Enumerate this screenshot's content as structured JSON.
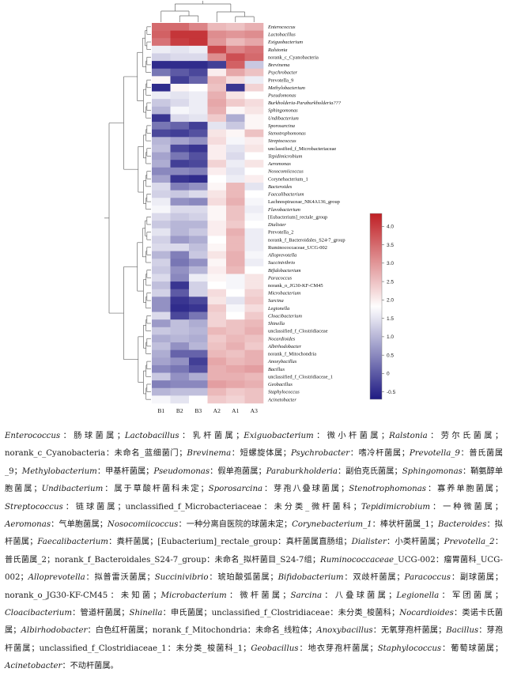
{
  "chart_data": {
    "type": "heatmap",
    "title": "",
    "columns": [
      "B1",
      "B2",
      "B3",
      "A2",
      "A1",
      "A3"
    ],
    "rows": [
      {
        "name": "Enterococcus",
        "italic": true,
        "values": [
          3.5,
          3.5,
          3.2,
          2.6,
          2.5,
          2.7
        ]
      },
      {
        "name": "Lactobacillus",
        "italic": true,
        "values": [
          3.6,
          4.1,
          4.1,
          3.1,
          3.0,
          3.1
        ]
      },
      {
        "name": "Exiguobacterium",
        "italic": true,
        "values": [
          3.4,
          4.0,
          4.1,
          3.0,
          2.6,
          2.8
        ]
      },
      {
        "name": "Ralstonia",
        "italic": true,
        "values": [
          1.6,
          1.5,
          1.6,
          3.9,
          3.2,
          3.4
        ]
      },
      {
        "name": "norank_c_Cyanobacteria",
        "italic": false,
        "values": [
          1.3,
          1.4,
          1.4,
          3.1,
          3.8,
          3.5
        ]
      },
      {
        "name": "Brevinema",
        "italic": true,
        "values": [
          -0.5,
          -0.5,
          -0.5,
          -0.3,
          3.6,
          1.2
        ]
      },
      {
        "name": "Psychrobacter",
        "italic": true,
        "values": [
          0.3,
          0.0,
          -0.2,
          2.0,
          2.8,
          2.5
        ]
      },
      {
        "name": "Prevotella_9",
        "italic": false,
        "values": [
          1.9,
          -0.3,
          0.1,
          2.6,
          2.2,
          1.6
        ]
      },
      {
        "name": "Methylobacterium",
        "italic": true,
        "values": [
          -0.5,
          1.9,
          1.8,
          2.5,
          -0.4,
          2.3
        ]
      },
      {
        "name": "Pseudomonas",
        "italic": true,
        "values": [
          1.6,
          1.5,
          1.6,
          2.7,
          2.1,
          1.8
        ]
      },
      {
        "name": "Burkholderia-Paraburkholderia???",
        "italic": true,
        "values": [
          1.2,
          1.4,
          1.6,
          2.8,
          2.4,
          2.2
        ]
      },
      {
        "name": "Sphingomonas",
        "italic": true,
        "values": [
          1.0,
          1.7,
          1.6,
          2.7,
          1.9,
          2.1
        ]
      },
      {
        "name": "Undibacterium",
        "italic": true,
        "values": [
          -0.4,
          1.4,
          1.5,
          2.4,
          0.9,
          1.9
        ]
      },
      {
        "name": "Sporosarcina",
        "italic": true,
        "values": [
          0.3,
          0.1,
          -0.3,
          1.5,
          1.2,
          1.9
        ]
      },
      {
        "name": "Stenotrophomonas",
        "italic": true,
        "values": [
          -0.2,
          -0.3,
          -0.1,
          2.1,
          1.9,
          2.5
        ]
      },
      {
        "name": "Streptococcus",
        "italic": true,
        "values": [
          1.0,
          0.8,
          0.6,
          2.2,
          1.7,
          2.0
        ]
      },
      {
        "name": "unclassified_f_Microbacteriaceae",
        "italic": false,
        "values": [
          1.1,
          -0.2,
          -0.4,
          2.0,
          1.5,
          2.1
        ]
      },
      {
        "name": "Tepidimicrobium",
        "italic": true,
        "values": [
          0.8,
          0.3,
          -0.1,
          2.0,
          1.4,
          1.8
        ]
      },
      {
        "name": "Aeromonas",
        "italic": true,
        "values": [
          0.9,
          -0.3,
          -0.2,
          2.3,
          1.6,
          2.1
        ]
      },
      {
        "name": "Nosocomiicoccus",
        "italic": true,
        "values": [
          0.5,
          0.5,
          0.4,
          2.0,
          1.5,
          1.8
        ]
      },
      {
        "name": "Corynebacterium_1",
        "italic": false,
        "values": [
          0.8,
          -0.4,
          -0.5,
          1.8,
          1.6,
          2.0
        ]
      },
      {
        "name": "Bacteroides",
        "italic": true,
        "values": [
          1.4,
          0.4,
          0.6,
          1.9,
          2.6,
          1.5
        ]
      },
      {
        "name": "Faecalibacterium",
        "italic": true,
        "values": [
          1.3,
          1.2,
          1.4,
          2.1,
          2.6,
          1.8
        ]
      },
      {
        "name": "Lachnospiraceae_NK4A136_group",
        "italic": false,
        "values": [
          1.6,
          0.6,
          0.5,
          2.2,
          2.7,
          1.7
        ]
      },
      {
        "name": "Flavobacterium",
        "italic": true,
        "values": [
          1.7,
          1.4,
          1.4,
          1.9,
          2.5,
          1.6
        ]
      },
      {
        "name": "[Eubacterium]_rectale_group",
        "italic": false,
        "values": [
          1.4,
          1.2,
          1.3,
          1.9,
          2.5,
          1.7
        ]
      },
      {
        "name": "Dialister",
        "italic": true,
        "values": [
          1.2,
          1.0,
          1.0,
          2.0,
          2.4,
          1.8
        ]
      },
      {
        "name": "Prevotella_2",
        "italic": false,
        "values": [
          1.5,
          1.0,
          1.2,
          2.0,
          2.7,
          1.6
        ]
      },
      {
        "name": "norank_f_Bacteroidales_S24-7_group",
        "italic": false,
        "values": [
          1.3,
          0.7,
          0.9,
          1.8,
          2.6,
          1.6
        ]
      },
      {
        "name": "Ruminococcaceae_UCG-002",
        "italic": false,
        "values": [
          1.4,
          1.4,
          1.1,
          1.9,
          2.6,
          1.6
        ]
      },
      {
        "name": "Alloprevotella",
        "italic": true,
        "values": [
          1.0,
          0.4,
          1.2,
          2.1,
          2.7,
          1.7
        ]
      },
      {
        "name": "Succinivibrio",
        "italic": true,
        "values": [
          1.3,
          0.3,
          0.6,
          1.9,
          2.7,
          1.6
        ]
      },
      {
        "name": "Bifidobacterium",
        "italic": true,
        "values": [
          1.2,
          0.6,
          1.0,
          2.0,
          2.6,
          1.8
        ]
      },
      {
        "name": "Paracoccus",
        "italic": true,
        "values": [
          1.4,
          0.5,
          1.6,
          1.9,
          1.7,
          2.1
        ]
      },
      {
        "name": "norank_o_JG30-KF-CM45",
        "italic": false,
        "values": [
          1.1,
          -0.4,
          1.3,
          1.8,
          1.7,
          2.1
        ]
      },
      {
        "name": "Microbacterium",
        "italic": true,
        "values": [
          1.3,
          0.0,
          1.3,
          2.2,
          1.8,
          2.3
        ]
      },
      {
        "name": "Sarcina",
        "italic": true,
        "values": [
          0.6,
          -0.4,
          -0.2,
          2.1,
          1.5,
          2.4
        ]
      },
      {
        "name": "Legionella",
        "italic": true,
        "values": [
          0.6,
          -0.5,
          -0.4,
          2.4,
          1.7,
          2.2
        ]
      },
      {
        "name": "Cloacibacterium",
        "italic": true,
        "values": [
          1.4,
          -0.2,
          0.3,
          2.3,
          1.8,
          2.4
        ]
      },
      {
        "name": "Shinella",
        "italic": true,
        "values": [
          0.7,
          1.1,
          0.9,
          2.3,
          2.5,
          2.6
        ]
      },
      {
        "name": "unclassified_f_Clostridiaceae",
        "italic": false,
        "values": [
          1.2,
          1.1,
          1.0,
          2.6,
          2.5,
          2.7
        ]
      },
      {
        "name": "Nocardioides",
        "italic": true,
        "values": [
          0.9,
          1.0,
          0.9,
          2.4,
          2.6,
          2.5
        ]
      },
      {
        "name": "Albirhodobacter",
        "italic": true,
        "values": [
          1.1,
          0.6,
          1.0,
          2.5,
          2.7,
          2.4
        ]
      },
      {
        "name": "norank_f_Mitochondria",
        "italic": false,
        "values": [
          0.9,
          0.1,
          0.1,
          2.6,
          2.5,
          2.7
        ]
      },
      {
        "name": "Anoxybacillus",
        "italic": true,
        "values": [
          0.8,
          0.6,
          -0.3,
          2.8,
          2.6,
          2.7
        ]
      },
      {
        "name": "Bacillus",
        "italic": true,
        "values": [
          0.5,
          0.3,
          -0.1,
          2.7,
          2.8,
          2.9
        ]
      },
      {
        "name": "unclassified_f_Clostridiaceae_1",
        "italic": false,
        "values": [
          1.2,
          0.6,
          0.9,
          2.7,
          2.7,
          2.6
        ]
      },
      {
        "name": "Geobacillus",
        "italic": true,
        "values": [
          0.4,
          0.5,
          0.5,
          2.9,
          2.8,
          2.7
        ]
      },
      {
        "name": "Staphylococcus",
        "italic": true,
        "values": [
          1.0,
          1.1,
          1.1,
          2.6,
          2.4,
          2.5
        ]
      },
      {
        "name": "Acinetobacter",
        "italic": true,
        "values": [
          1.7,
          1.5,
          1.8,
          2.4,
          2.3,
          2.5
        ]
      }
    ],
    "colorbar": {
      "ticks": [
        "4.0",
        "3.5",
        "3.0",
        "2.5",
        "2.0",
        "1.5",
        "1.0",
        "0.5",
        "0",
        "-0.5"
      ],
      "min": -0.7,
      "max": 4.35,
      "mid": 1.8,
      "low_color": "#1e1a82",
      "mid_color": "#ffffff",
      "high_color": "#bf1f24"
    },
    "dendrogram": "hierarchical clustering of rows (left) and columns (top)"
  },
  "caption": [
    {
      "t": "Enterococcus",
      "i": true
    },
    {
      "t": "：肠球菌属；"
    },
    {
      "t": "Lactobacillus",
      "i": true
    },
    {
      "t": "：乳杆菌属；"
    },
    {
      "t": "Exiguobacterium",
      "i": true
    },
    {
      "t": "：微小杆菌属；"
    },
    {
      "t": "Ralstonia",
      "i": true
    },
    {
      "t": "：劳尔氏菌属；norank_c_Cyanobacteria：未命名_蓝细菌门；"
    },
    {
      "t": "Brevinema",
      "i": true
    },
    {
      "t": "：短螺旋体属；"
    },
    {
      "t": "Psychrobacter",
      "i": true
    },
    {
      "t": "：嗜冷杆菌属；"
    },
    {
      "t": "Prevotella_9",
      "i": true
    },
    {
      "t": "：普氏菌属_9；"
    },
    {
      "t": "Methylobacterium",
      "i": true
    },
    {
      "t": "：甲基杆菌属；"
    },
    {
      "t": "Pseudomonas",
      "i": true
    },
    {
      "t": "：假单孢菌属；"
    },
    {
      "t": "Paraburkholderia",
      "i": true
    },
    {
      "t": "：副伯克氏菌属；"
    },
    {
      "t": "Sphingomonas",
      "i": true
    },
    {
      "t": "：鞘氨醇单胞菌属；"
    },
    {
      "t": "Undibacterium",
      "i": true
    },
    {
      "t": "：属于草酸杆菌科未定；"
    },
    {
      "t": "Sporosarcina",
      "i": true
    },
    {
      "t": "：芽孢八叠球菌属；"
    },
    {
      "t": "Stenotrophomonas",
      "i": true
    },
    {
      "t": "：寡养单胞菌属；"
    },
    {
      "t": "Streptococcus",
      "i": true
    },
    {
      "t": "：链球菌属；unclassified_f_Microbacteriaceae：未分类_微杆菌科；"
    },
    {
      "t": "Tepidimicrobium",
      "i": true
    },
    {
      "t": "：一种微菌属；"
    },
    {
      "t": "Aeromonas",
      "i": true
    },
    {
      "t": "：气单胞菌属；"
    },
    {
      "t": "Nosocomiicoccus",
      "i": true
    },
    {
      "t": "：一种分离自医院的球菌未定；"
    },
    {
      "t": "Corynebacterium_1",
      "i": true
    },
    {
      "t": "：棒状杆菌属_1；"
    },
    {
      "t": "Bacteroides",
      "i": true
    },
    {
      "t": "：拟杆菌属；"
    },
    {
      "t": "Faecalibacterium",
      "i": true
    },
    {
      "t": "：粪杆菌属；[Eubacterium]_rectale_group：真杆菌属直肠组；"
    },
    {
      "t": "Dialister",
      "i": true
    },
    {
      "t": "：小类杆菌属；"
    },
    {
      "t": "Prevotella_2",
      "i": true
    },
    {
      "t": "：普氏菌属_2；norank_f_Bacteroidales_S24-7_group：未命名_拟杆菌目_S24-7组；"
    },
    {
      "t": "Ruminococcaceae",
      "i": true
    },
    {
      "t": "_UCG-002：瘤胃菌科_UCG-002；"
    },
    {
      "t": "Alloprevotella",
      "i": true
    },
    {
      "t": "：拟普雷沃菌属；"
    },
    {
      "t": "Succinivibrio",
      "i": true
    },
    {
      "t": "：琥珀酸弧菌属；"
    },
    {
      "t": "Bifidobacterium",
      "i": true
    },
    {
      "t": "：双歧杆菌属；"
    },
    {
      "t": "Paracoccus",
      "i": true
    },
    {
      "t": "：副球菌属；norank_o_JG30-KF-CM45：未知菌；"
    },
    {
      "t": "Microbacterium",
      "i": true
    },
    {
      "t": "：微杆菌属；"
    },
    {
      "t": "Sarcina",
      "i": true
    },
    {
      "t": "：八叠球菌属；"
    },
    {
      "t": "Legionella",
      "i": true
    },
    {
      "t": "：军团菌属；"
    },
    {
      "t": "Cloacibacterium",
      "i": true
    },
    {
      "t": "：管道杆菌属；"
    },
    {
      "t": "Shinella",
      "i": true
    },
    {
      "t": "：申氏菌属；unclassified_f_Clostridiaceae：未分类_梭菌科；"
    },
    {
      "t": "Nocardioides",
      "i": true
    },
    {
      "t": "：类诺卡氏菌属；"
    },
    {
      "t": "Albirhodobacter",
      "i": true
    },
    {
      "t": "：白色红杆菌属；norank_f_Mitochondria：未命名_线粒体；"
    },
    {
      "t": "Anoxybacillus",
      "i": true
    },
    {
      "t": "：无氧芽孢杆菌属；"
    },
    {
      "t": "Bacillus",
      "i": true
    },
    {
      "t": "：芽孢杆菌属；unclassified_f_Clostridiaceae_1：未分类_梭菌科_1；"
    },
    {
      "t": "Geobacillus",
      "i": true
    },
    {
      "t": "：地衣芽孢杆菌属；"
    },
    {
      "t": "Staphylococcus",
      "i": true
    },
    {
      "t": "：葡萄球菌属；"
    },
    {
      "t": "Acinetobacter",
      "i": true
    },
    {
      "t": "：不动杆菌属。"
    }
  ]
}
